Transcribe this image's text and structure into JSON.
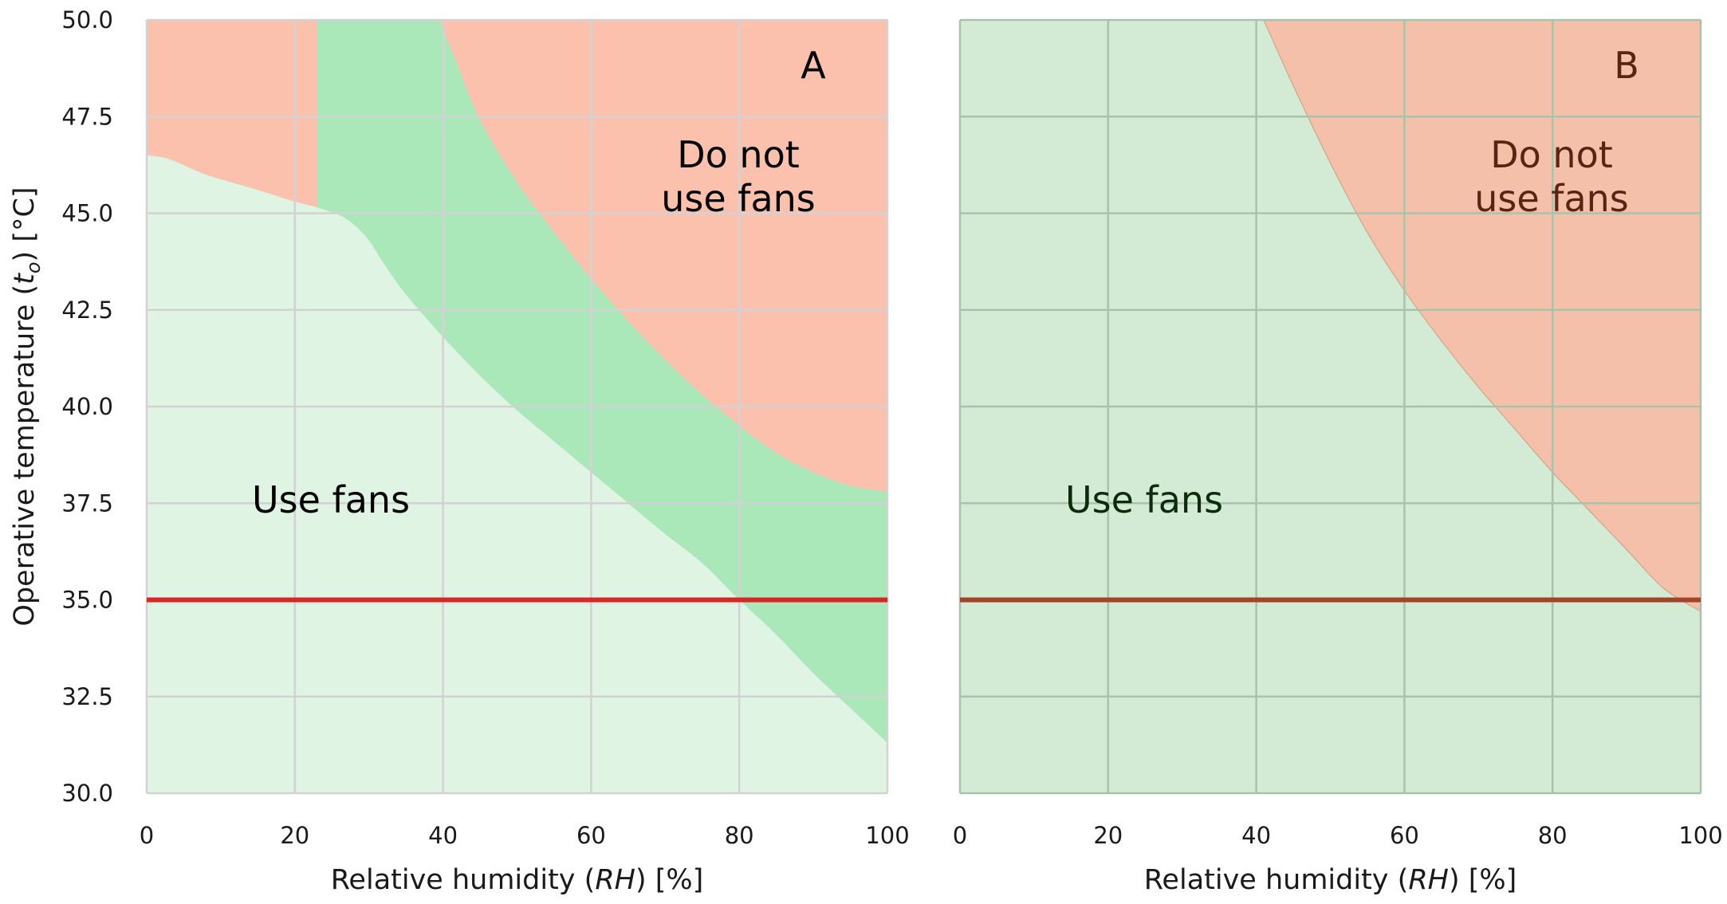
{
  "chart_data": [
    {
      "type": "area",
      "panel_label": "A",
      "xlabel": {
        "pre": "Relative humidity (",
        "var": "RH",
        "post": ") [%]"
      },
      "ylabel": {
        "pre": "Operative temperature (",
        "var": "t",
        "sub": "o",
        "post": ") [°C]"
      },
      "xlim": [
        0,
        100
      ],
      "ylim": [
        30,
        50
      ],
      "x_ticks": [
        "0",
        "20",
        "40",
        "60",
        "80",
        "100"
      ],
      "y_ticks": [
        "30.0",
        "32.5",
        "35.0",
        "37.5",
        "40.0",
        "42.5",
        "45.0",
        "47.5",
        "50.0"
      ],
      "grid": true,
      "threshold": {
        "y": 35.0,
        "color": "#d62728"
      },
      "annotations": {
        "use": "Use fans",
        "do_not_1": "Do not",
        "do_not_2": "use fans"
      },
      "colors": {
        "light_green": "#dff4e3",
        "mid_green": "#aae8ba",
        "salmon": "#fcc1ad",
        "text": "#000000"
      },
      "regions": {
        "light_green_upper_boundary": [
          [
            0,
            46.5
          ],
          [
            3,
            46.4
          ],
          [
            8,
            46.0
          ],
          [
            15,
            45.6
          ],
          [
            20,
            45.3
          ],
          [
            23,
            45.15
          ],
          [
            26,
            44.95
          ],
          [
            28,
            44.7
          ],
          [
            30,
            44.3
          ],
          [
            32,
            43.7
          ],
          [
            35,
            42.9
          ],
          [
            40,
            41.8
          ],
          [
            45,
            40.8
          ],
          [
            50,
            39.9
          ],
          [
            55,
            39.1
          ],
          [
            60,
            38.3
          ],
          [
            65,
            37.5
          ],
          [
            70,
            36.7
          ],
          [
            75,
            35.95
          ],
          [
            80,
            35.0
          ],
          [
            85,
            34.1
          ],
          [
            90,
            33.1
          ],
          [
            95,
            32.2
          ],
          [
            100,
            31.3
          ]
        ],
        "do_not_use_fans_lower_boundary": [
          [
            39.5,
            50.0
          ],
          [
            42,
            48.8
          ],
          [
            45,
            47.4
          ],
          [
            50,
            45.8
          ],
          [
            55,
            44.5
          ],
          [
            60,
            43.3
          ],
          [
            65,
            42.2
          ],
          [
            70,
            41.2
          ],
          [
            75,
            40.3
          ],
          [
            80,
            39.5
          ],
          [
            85,
            38.8
          ],
          [
            90,
            38.3
          ],
          [
            95,
            37.95
          ],
          [
            100,
            37.8
          ]
        ],
        "salmon_left_block": {
          "x_max": 23
        }
      }
    },
    {
      "type": "area",
      "panel_label": "B",
      "xlabel": {
        "pre": "Relative humidity (",
        "var": "RH",
        "post": ") [%]"
      },
      "xlim": [
        0,
        100
      ],
      "ylim": [
        30,
        50
      ],
      "x_ticks": [
        "0",
        "20",
        "40",
        "60",
        "80",
        "100"
      ],
      "grid": true,
      "threshold": {
        "y": 35.0,
        "color": "#a0442a"
      },
      "annotations": {
        "use": "Use fans",
        "do_not_1": "Do not",
        "do_not_2": "use fans"
      },
      "colors": {
        "green": "#d3ebd5",
        "salmon": "#f4c0a9",
        "use_text": "#0c2b0c",
        "do_not_text": "#5a2413"
      },
      "regions": {
        "do_not_use_fans_lower_boundary": [
          [
            41,
            50.0
          ],
          [
            45,
            48.3
          ],
          [
            50,
            46.3
          ],
          [
            55,
            44.5
          ],
          [
            60,
            43.0
          ],
          [
            65,
            41.7
          ],
          [
            70,
            40.5
          ],
          [
            75,
            39.4
          ],
          [
            80,
            38.3
          ],
          [
            85,
            37.3
          ],
          [
            90,
            36.3
          ],
          [
            95,
            35.3
          ],
          [
            100,
            34.7
          ]
        ]
      }
    }
  ]
}
